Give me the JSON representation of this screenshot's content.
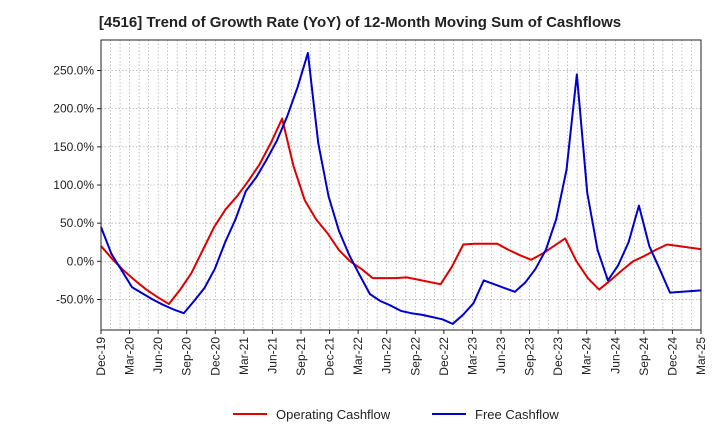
{
  "chart_data": {
    "type": "line",
    "title": "[4516]  Trend of Growth Rate (YoY) of 12-Month Moving Sum of Cashflows",
    "xlabel": "",
    "ylabel": "",
    "ylim": [
      -90,
      290
    ],
    "yticks": [
      250,
      200,
      150,
      100,
      50,
      0,
      -50
    ],
    "ytick_labels": [
      "250.0%",
      "200.0%",
      "150.0%",
      "100.0%",
      "50.0%",
      "0.0%",
      "-50.0%"
    ],
    "grid": true,
    "x_start": "Dec-19",
    "x_tick_labels": [
      "Dec-19",
      "Mar-20",
      "Jun-20",
      "Sep-20",
      "Dec-20",
      "Mar-21",
      "Jun-21",
      "Sep-21",
      "Dec-21",
      "Mar-22",
      "Jun-22",
      "Sep-22",
      "Dec-22",
      "Mar-23",
      "Jun-23",
      "Sep-23",
      "Dec-23",
      "Mar-24",
      "Jun-24",
      "Sep-24",
      "Dec-24",
      "Mar-25"
    ],
    "series": [
      {
        "name": "Operating Cashflow",
        "color": "#dd0000",
        "values": [
          20,
          3,
          -12,
          -25,
          -37,
          -47,
          -56,
          -37,
          -15,
          15,
          45,
          68,
          85,
          105,
          127,
          155,
          187,
          125,
          80,
          55,
          37,
          15,
          0,
          -10,
          -22,
          -22,
          -22,
          -21,
          -24,
          -27,
          -30,
          -7,
          22,
          23,
          23,
          23,
          15,
          8,
          2,
          10,
          20,
          30,
          0,
          -22,
          -37,
          -25,
          -12,
          0,
          7,
          15,
          22,
          20,
          18,
          16
        ]
      },
      {
        "name": "Free Cashflow",
        "color": "#0000cc",
        "values": [
          45,
          10,
          -12,
          -34,
          -42,
          -50,
          -57,
          -63,
          -68,
          -52,
          -35,
          -10,
          25,
          55,
          92,
          110,
          133,
          158,
          190,
          228,
          273,
          155,
          85,
          40,
          8,
          -18,
          -43,
          -52,
          -58,
          -65,
          -68,
          -70,
          -73,
          -76,
          -82,
          -70,
          -55,
          -25,
          -30,
          -35,
          -40,
          -28,
          -10,
          15,
          55,
          120,
          245,
          90,
          15,
          -25,
          -5,
          25,
          73,
          20,
          -10,
          -41,
          -40,
          -39,
          -38
        ]
      }
    ]
  }
}
